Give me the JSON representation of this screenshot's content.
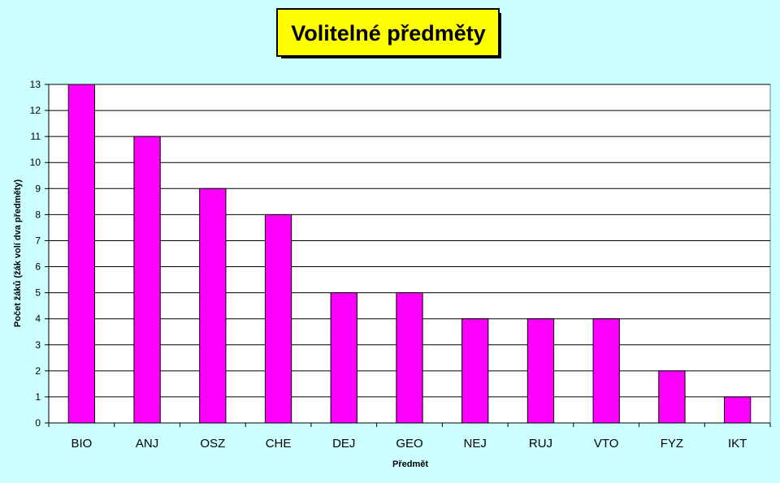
{
  "chart_data": {
    "type": "bar",
    "title": "Volitelné předměty",
    "xlabel": "Předmět",
    "ylabel": "Počet žáků (žák volí dva předměty)",
    "categories": [
      "BIO",
      "ANJ",
      "OSZ",
      "CHE",
      "DEJ",
      "GEO",
      "NEJ",
      "RUJ",
      "VTO",
      "FYZ",
      "IKT"
    ],
    "values": [
      13,
      11,
      9,
      8,
      5,
      5,
      4,
      4,
      4,
      2,
      1
    ],
    "ylim": [
      0,
      13
    ],
    "yticks": [
      "0",
      "1",
      "2",
      "3",
      "4",
      "5",
      "6",
      "7",
      "8",
      "9",
      "10",
      "11",
      "12",
      "13"
    ],
    "grid": true,
    "legend": "none",
    "colors": {
      "background": "#ccffff",
      "plot_area": "#ffffff",
      "bar": "#ff00ff",
      "title_box": "#ffff00",
      "gridline": "#000000"
    }
  }
}
